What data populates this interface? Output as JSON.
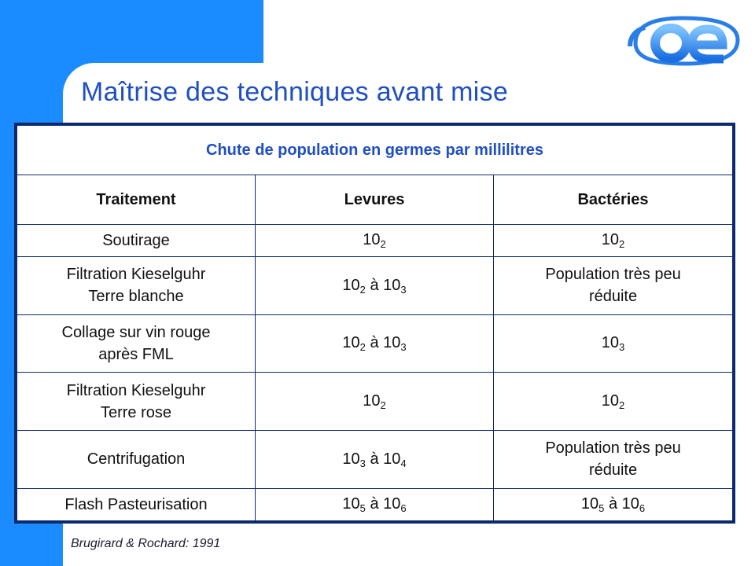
{
  "slide": {
    "title": "Maîtrise des techniques avant mise",
    "source": "Brugirard & Rochard: 1991",
    "logo_text": "oe",
    "colors": {
      "accent": "#1a8cff",
      "title": "#1f4fc2",
      "border": "#0b2a6e"
    }
  },
  "table": {
    "caption": "Chute de population en germes par millilitres",
    "headers": [
      "Traitement",
      "Levures",
      "Bactéries"
    ],
    "rows": [
      {
        "traitement": [
          "Soutirage"
        ],
        "levures": [
          {
            "base": "10",
            "sub": "2"
          }
        ],
        "bacteries": [
          {
            "base": "10",
            "sub": "2"
          }
        ]
      },
      {
        "traitement": [
          "Filtration Kieselguhr",
          "Terre blanche"
        ],
        "levures": [
          {
            "base": "10",
            "sub": "2"
          },
          {
            "base": "10",
            "sub": "3"
          }
        ],
        "bacteries_text": [
          "Population très peu",
          "réduite"
        ]
      },
      {
        "traitement": [
          "Collage sur vin rouge",
          "après FML"
        ],
        "levures": [
          {
            "base": "10",
            "sub": "2"
          },
          {
            "base": "10",
            "sub": "3"
          }
        ],
        "bacteries": [
          {
            "base": "10",
            "sub": "3"
          }
        ]
      },
      {
        "traitement": [
          "Filtration Kieselguhr",
          "Terre rose"
        ],
        "levures": [
          {
            "base": "10",
            "sub": "2"
          }
        ],
        "bacteries": [
          {
            "base": "10",
            "sub": "2"
          }
        ]
      },
      {
        "traitement": [
          "Centrifugation"
        ],
        "levures": [
          {
            "base": "10",
            "sub": "3"
          },
          {
            "base": "10",
            "sub": "4"
          }
        ],
        "bacteries_text": [
          "Population très peu",
          "réduite"
        ]
      },
      {
        "traitement": [
          "Flash Pasteurisation"
        ],
        "levures": [
          {
            "base": "10",
            "sub": "5"
          },
          {
            "base": "10",
            "sub": "6"
          }
        ],
        "bacteries": [
          {
            "base": "10",
            "sub": "5"
          },
          {
            "base": "10",
            "sub": "6"
          }
        ]
      }
    ],
    "range_word": "à"
  }
}
